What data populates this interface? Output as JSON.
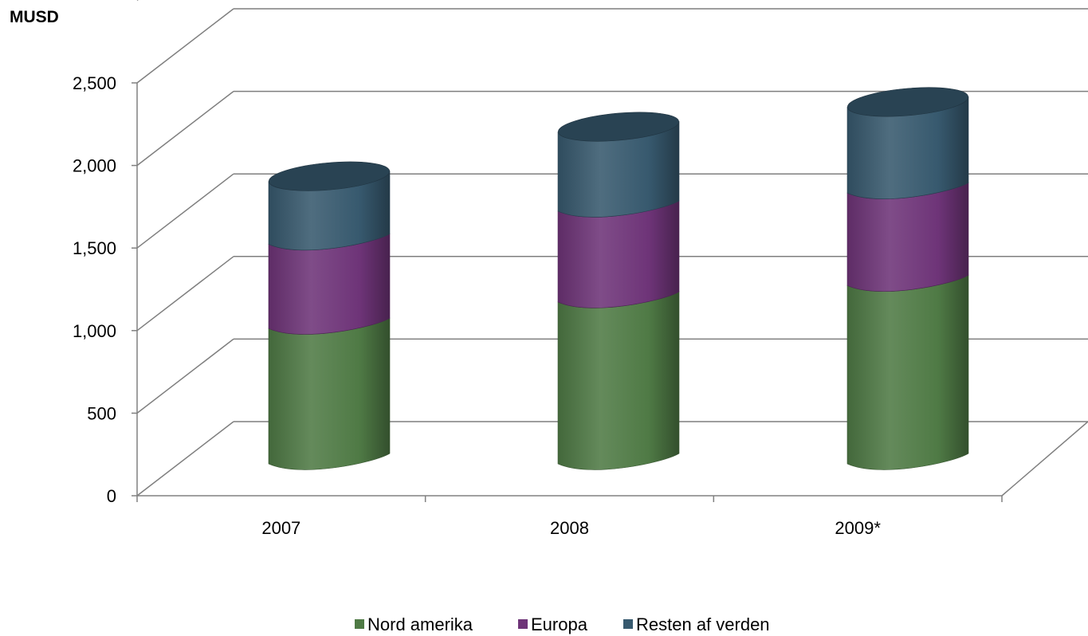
{
  "chart_data": {
    "type": "bar",
    "stacked": true,
    "style": "3d-cylinder",
    "unit_label": "MUSD",
    "categories": [
      "2007",
      "2008",
      "2009*"
    ],
    "series": [
      {
        "name": "Nord amerika",
        "color": "#4f7a45",
        "values": [
          820,
          980,
          1080
        ]
      },
      {
        "name": "Europa",
        "color": "#6e3478",
        "values": [
          510,
          550,
          560
        ]
      },
      {
        "name": "Resten af verden",
        "color": "#37596e",
        "values": [
          380,
          480,
          520
        ]
      }
    ],
    "ylim": [
      0,
      2500
    ],
    "y_ticks": [
      "0",
      "500",
      "1,000",
      "1,500",
      "2,000",
      "2,500"
    ],
    "grid": true,
    "legend_position": "bottom"
  }
}
